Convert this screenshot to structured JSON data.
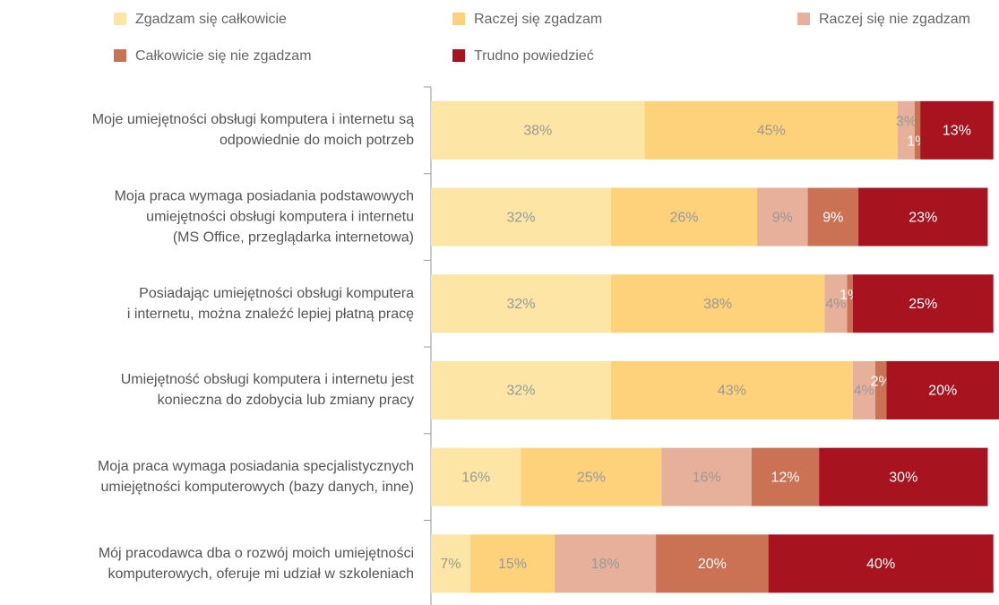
{
  "chart_data": {
    "type": "stacked-bar-horizontal",
    "categories": [
      "Moje umiejętności obsługi komputera i internetu są\nodpowiednie do moich potrzeb",
      "Moja praca wymaga posiadania podstawowych\numiejętności obsługi komputera i internetu\n(MS Office, przeglądarka internetowa)",
      "Posiadając umiejętności obsługi komputera\ni internetu, można znaleźć lepiej płatną pracę",
      "Umiejętność obsługi komputera i internetu jest\nkonieczna do zdobycia lub zmiany pracy",
      "Moja praca wymaga posiadania specjalistycznych\numiejętności komputerowych (bazy danych, inne)",
      "Mój pracodawca dba o rozwój moich umiejętności\nkomputerowych, oferuje mi udział w szkoleniach"
    ],
    "series": [
      {
        "name": "Zgadzam się całkowicie",
        "color": "#fde5a6",
        "values": [
          38,
          32,
          32,
          32,
          16,
          7
        ],
        "value_labels": [
          "38%",
          "32%",
          "32%",
          "32%",
          "16%",
          "7%"
        ]
      },
      {
        "name": "Raczej się zgadzam",
        "color": "#fdd27b",
        "values": [
          45,
          26,
          38,
          43,
          25,
          15
        ],
        "value_labels": [
          "45%",
          "26%",
          "38%",
          "43%",
          "25%",
          "15%"
        ]
      },
      {
        "name": "Raczej się nie zgadzam",
        "color": "#e7b09a",
        "values": [
          3,
          9,
          4,
          4,
          16,
          18
        ],
        "value_labels": [
          "3%",
          "9%",
          "4%",
          "4%",
          "16%",
          "18%"
        ]
      },
      {
        "name": "Całkowicie się nie zgadzam",
        "color": "#cb7255",
        "values": [
          1,
          9,
          1,
          2,
          12,
          20
        ],
        "value_labels": [
          "1%",
          "9%",
          "1%",
          "2%",
          "12%",
          "20%"
        ]
      },
      {
        "name": "Trudno powiedzieć",
        "color": "#a7141f",
        "values": [
          13,
          23,
          25,
          20,
          30,
          40
        ],
        "value_labels": [
          "13%",
          "23%",
          "25%",
          "20%",
          "30%",
          "40%"
        ]
      }
    ],
    "xlim": [
      0,
      101
    ]
  }
}
